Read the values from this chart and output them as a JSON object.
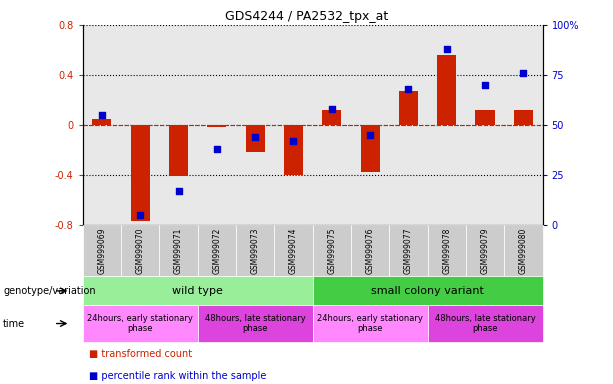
{
  "title": "GDS4244 / PA2532_tpx_at",
  "samples": [
    "GSM999069",
    "GSM999070",
    "GSM999071",
    "GSM999072",
    "GSM999073",
    "GSM999074",
    "GSM999075",
    "GSM999076",
    "GSM999077",
    "GSM999078",
    "GSM999079",
    "GSM999080"
  ],
  "bar_values": [
    0.05,
    -0.77,
    -0.41,
    -0.02,
    -0.22,
    -0.4,
    0.12,
    -0.38,
    0.27,
    0.56,
    0.12,
    0.12
  ],
  "dot_values_pct": [
    55,
    5,
    17,
    38,
    44,
    42,
    58,
    45,
    68,
    88,
    70,
    76
  ],
  "ylim_left": [
    -0.8,
    0.8
  ],
  "ylim_right": [
    0,
    100
  ],
  "bar_color": "#cc2200",
  "dot_color": "#0000cc",
  "zero_line_color": "#cc2200",
  "plot_bg": "#e8e8e8",
  "genotype_groups": [
    {
      "name": "wild type",
      "start": 0,
      "end": 5,
      "color": "#99ee99"
    },
    {
      "name": "small colony variant",
      "start": 6,
      "end": 11,
      "color": "#44cc44"
    }
  ],
  "time_groups": [
    {
      "name": "24hours, early stationary\nphase",
      "start": 0,
      "end": 2,
      "color": "#ff88ff"
    },
    {
      "name": "48hours, late stationary\nphase",
      "start": 3,
      "end": 5,
      "color": "#dd44dd"
    },
    {
      "name": "24hours, early stationary\nphase",
      "start": 6,
      "end": 8,
      "color": "#ff88ff"
    },
    {
      "name": "48hours, late stationary\nphase",
      "start": 9,
      "end": 11,
      "color": "#dd44dd"
    }
  ],
  "legend_items": [
    {
      "label": "transformed count",
      "color": "#cc2200"
    },
    {
      "label": "percentile rank within the sample",
      "color": "#0000cc"
    }
  ],
  "right_yticks": [
    0,
    25,
    50,
    75,
    100
  ],
  "right_yticklabels": [
    "0",
    "25",
    "50",
    "75",
    "100%"
  ],
  "left_yticks": [
    -0.8,
    -0.4,
    0.0,
    0.4,
    0.8
  ],
  "left_yticklabels": [
    "-0.8",
    "-0.4",
    "0",
    "0.4",
    "0.8"
  ]
}
